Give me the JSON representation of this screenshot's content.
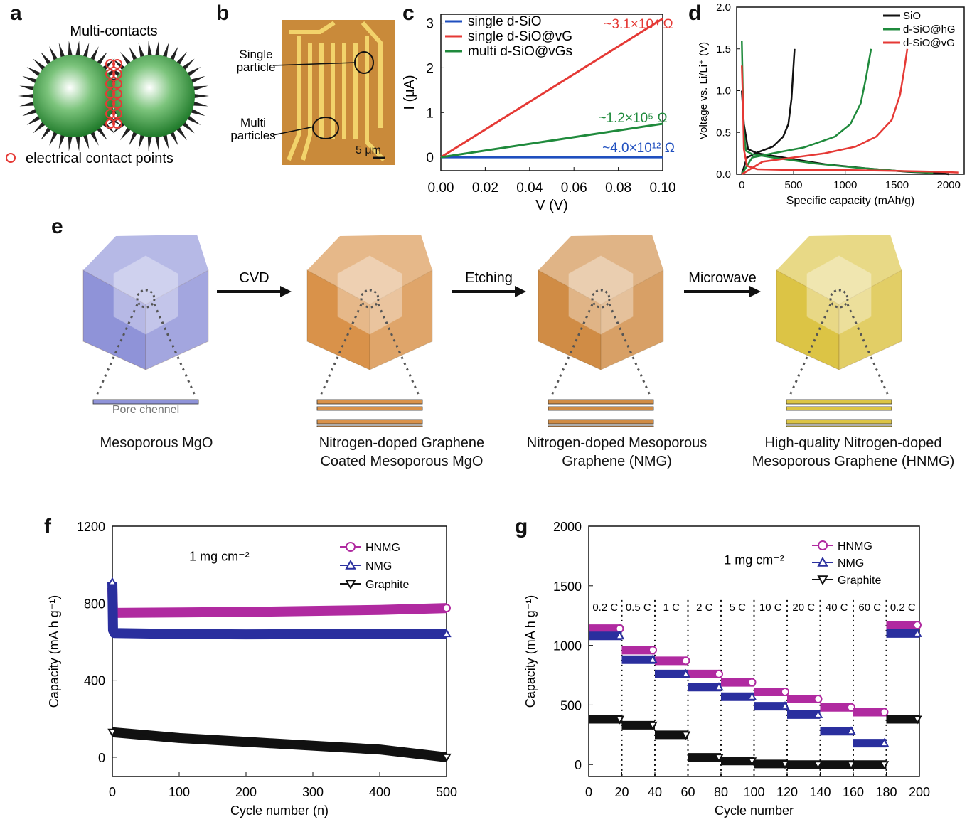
{
  "panels": {
    "a": {
      "label": "a",
      "title": "Multi-contacts",
      "legend": "electrical contact points",
      "colors": {
        "sphere": "#2e8b2e",
        "contact": "#e53935"
      }
    },
    "b": {
      "label": "b",
      "single": "Single particle",
      "multi": "Multi particles",
      "scale": "5 μm"
    },
    "e": {
      "label": "e",
      "steps": [
        {
          "caption1": "Mesoporous MgO",
          "caption2": "",
          "color": "#8f93d8"
        },
        {
          "caption1": "Nitrogen-doped Graphene",
          "caption2": "Coated Mesoporous MgO",
          "color": "#d9924a"
        },
        {
          "caption1": "Nitrogen-doped Mesoporous",
          "caption2": "Graphene (NMG)",
          "color": "#d08c45"
        },
        {
          "caption1": "High-quality Nitrogen-doped",
          "caption2": "Mesoporous Graphene (HNMG)",
          "color": "#dcc445"
        }
      ],
      "arrows": [
        "CVD",
        "Etching",
        "Microwave"
      ],
      "pore_label": "Pore chennel"
    }
  },
  "chart_data": [
    {
      "id": "c",
      "label": "c",
      "type": "line",
      "xlabel": "V (V)",
      "ylabel": "I (μA)",
      "xlim": [
        0,
        0.1
      ],
      "ylim": [
        -0.3,
        3.2
      ],
      "xticks": [
        "0.00",
        "0.02",
        "0.04",
        "0.06",
        "0.08",
        "0.10"
      ],
      "yticks": [
        "0",
        "1",
        "2",
        "3"
      ],
      "series": [
        {
          "name": "single d-SiO",
          "color": "#1f4fbf",
          "x": [
            0,
            0.1
          ],
          "y": [
            0,
            0
          ]
        },
        {
          "name": "single d-SiO@vG",
          "color": "#e53935",
          "x": [
            0,
            0.1
          ],
          "y": [
            0,
            3.1
          ]
        },
        {
          "name": "multi d-SiO@vGs",
          "color": "#1f8a3c",
          "x": [
            0,
            0.1
          ],
          "y": [
            0,
            0.75
          ]
        }
      ],
      "annotations": [
        {
          "text": "~3.1×10⁴ Ω",
          "color": "#e53935"
        },
        {
          "text": "~1.2×10⁵ Ω",
          "color": "#1f8a3c"
        },
        {
          "text": "~4.0×10¹² Ω",
          "color": "#1f4fbf"
        }
      ]
    },
    {
      "id": "d",
      "label": "d",
      "type": "line",
      "xlabel": "Specific capacity (mAh/g)",
      "ylabel": "Voltage vs. Li/Li⁺ (V)",
      "xlim": [
        -50,
        2150
      ],
      "ylim": [
        0,
        2.0
      ],
      "xticks": [
        "0",
        "500",
        "1000",
        "1500",
        "2000"
      ],
      "yticks": [
        "0.0",
        "0.5",
        "1.0",
        "1.5",
        "2.0"
      ],
      "series": [
        {
          "name": "SiO",
          "color": "#111111",
          "discharge": {
            "x": [
              0,
              20,
              60,
              150,
              400,
              800,
              1200,
              1600,
              1950,
              2000
            ],
            "y": [
              1.0,
              0.6,
              0.3,
              0.25,
              0.2,
              0.12,
              0.07,
              0.03,
              0.01,
              0.0
            ]
          },
          "charge": {
            "x": [
              0,
              50,
              150,
              300,
              400,
              450,
              480,
              500,
              510
            ],
            "y": [
              0.0,
              0.2,
              0.26,
              0.33,
              0.45,
              0.6,
              0.9,
              1.3,
              1.5
            ]
          }
        },
        {
          "name": "d-SiO@hG",
          "color": "#1f8a3c",
          "discharge": {
            "x": [
              0,
              10,
              20,
              40,
              100,
              300,
              700,
              1100,
              1500,
              1800,
              1850
            ],
            "y": [
              1.6,
              1.0,
              0.5,
              0.28,
              0.24,
              0.2,
              0.13,
              0.08,
              0.04,
              0.02,
              0.01
            ]
          },
          "charge": {
            "x": [
              0,
              100,
              300,
              600,
              900,
              1050,
              1150,
              1200,
              1250
            ],
            "y": [
              0.0,
              0.2,
              0.25,
              0.32,
              0.45,
              0.6,
              0.85,
              1.15,
              1.5
            ]
          }
        },
        {
          "name": "d-SiO@vG",
          "color": "#e53935",
          "discharge": {
            "x": [
              0,
              10,
              20,
              50,
              150,
              500,
              1000,
              1500,
              1900,
              2100
            ],
            "y": [
              1.3,
              0.9,
              0.3,
              0.1,
              0.06,
              0.05,
              0.05,
              0.04,
              0.03,
              0.02
            ]
          },
          "charge": {
            "x": [
              0,
              200,
              500,
              800,
              1100,
              1300,
              1450,
              1530,
              1570,
              1600
            ],
            "y": [
              0.0,
              0.15,
              0.2,
              0.25,
              0.33,
              0.45,
              0.65,
              0.95,
              1.25,
              1.5
            ]
          }
        }
      ]
    },
    {
      "id": "f",
      "label": "f",
      "type": "line",
      "xlabel": "Cycle number (n)",
      "ylabel": "Capacity (mA h g⁻¹)",
      "xlim": [
        0,
        500
      ],
      "ylim": [
        -100,
        1200
      ],
      "xticks": [
        "0",
        "100",
        "200",
        "300",
        "400",
        "500"
      ],
      "yticks": [
        "0",
        "400",
        "800",
        "1200"
      ],
      "annotation": "1 mg cm⁻²",
      "series": [
        {
          "name": "HNMG",
          "color": "#b02aa0",
          "marker": "circle",
          "x": [
            0,
            1,
            3,
            100,
            200,
            300,
            400,
            500
          ],
          "y": [
            880,
            760,
            750,
            752,
            755,
            760,
            765,
            775
          ]
        },
        {
          "name": "NMG",
          "color": "#2a2f9e",
          "marker": "triangle",
          "x": [
            0,
            1,
            3,
            100,
            200,
            300,
            400,
            500
          ],
          "y": [
            910,
            660,
            645,
            640,
            638,
            640,
            640,
            642
          ]
        },
        {
          "name": "Graphite",
          "color": "#111111",
          "marker": "triangle-down",
          "x": [
            0,
            100,
            200,
            300,
            400,
            500
          ],
          "y": [
            130,
            100,
            80,
            60,
            40,
            0
          ]
        }
      ]
    },
    {
      "id": "g",
      "label": "g",
      "type": "line",
      "xlabel": "Cycle number",
      "ylabel": "Capacity (mA h g⁻¹)",
      "xlim": [
        0,
        200
      ],
      "ylim": [
        -100,
        2000
      ],
      "xticks": [
        "0",
        "20",
        "40",
        "60",
        "80",
        "100",
        "120",
        "140",
        "160",
        "180",
        "200"
      ],
      "yticks": [
        "0",
        "500",
        "1000",
        "1500",
        "2000"
      ],
      "annotation": "1 mg cm⁻²",
      "rates": [
        "0.2 C",
        "0.5 C",
        "1 C",
        "2 C",
        "5 C",
        "10 C",
        "20 C",
        "40 C",
        "60 C",
        "0.2 C"
      ],
      "series": [
        {
          "name": "HNMG",
          "color": "#b02aa0",
          "marker": "circle",
          "levels": [
            1140,
            960,
            870,
            760,
            690,
            610,
            550,
            480,
            440,
            1170
          ]
        },
        {
          "name": "NMG",
          "color": "#2a2f9e",
          "marker": "triangle",
          "levels": [
            1080,
            880,
            760,
            650,
            570,
            490,
            420,
            280,
            180,
            1100
          ]
        },
        {
          "name": "Graphite",
          "color": "#111111",
          "marker": "triangle-down",
          "levels": [
            380,
            330,
            250,
            60,
            30,
            5,
            0,
            0,
            0,
            380
          ]
        }
      ]
    }
  ]
}
